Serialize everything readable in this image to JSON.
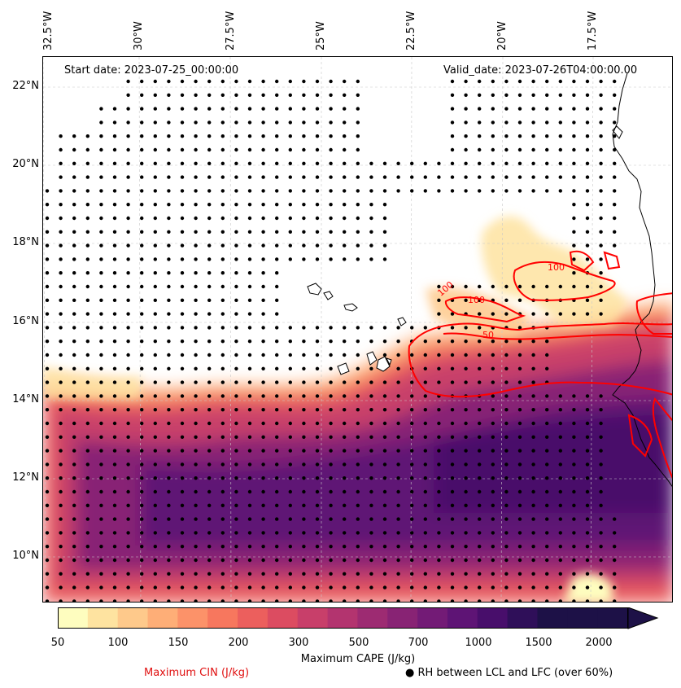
{
  "map": {
    "start_date": "Start date: 2023-07-25_00:00:00",
    "valid_date": "Valid_date: 2023-07-26T04:00:00.00",
    "lon_labels": [
      "32.5°W",
      "30°W",
      "27.5°W",
      "25°W",
      "22.5°W",
      "20°W",
      "17.5°W"
    ],
    "lat_labels": [
      "22°N",
      "20°N",
      "18°N",
      "16°N",
      "14°N",
      "12°N",
      "10°N"
    ],
    "cin_contour_labels": [
      "100",
      "50",
      "100",
      "100"
    ],
    "colors": {
      "cin_contour": "#ff0000",
      "stipple": "#000000",
      "coastline": "#000000",
      "gridline": "#c8c8c8"
    }
  },
  "colorbar": {
    "variable": "Maximum CAPE (J/kg)",
    "ticks": [
      "50",
      "100",
      "150",
      "200",
      "300",
      "500",
      "700",
      "1000",
      "1500",
      "2000"
    ],
    "colors": [
      "#fefdbf",
      "#fee3a0",
      "#fec98b",
      "#feae77",
      "#fc9269",
      "#f7775e",
      "#ec5f5d",
      "#dc4c61",
      "#c83f6a",
      "#b3346f",
      "#9d2b72",
      "#882374",
      "#731b76",
      "#5e1475",
      "#480e6b",
      "#2f0f59",
      "#1d1147"
    ]
  },
  "legend": {
    "cin_label": "Maximum CIN (J/kg)",
    "rh_label": "RH between LCL and LFC (over 60%)",
    "rh_symbol": "●"
  }
}
